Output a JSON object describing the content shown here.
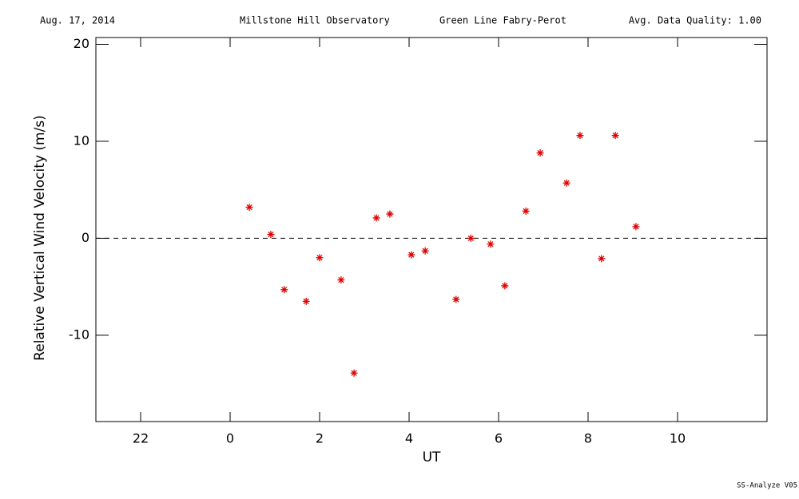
{
  "chart_data": {
    "type": "scatter",
    "header": [
      "Aug. 17, 2014",
      "Millstone Hill Observatory",
      "Green Line Fabry-Perot",
      "Avg. Data Quality: 1.00"
    ],
    "footer": "SS-Analyze V05",
    "x_label": "UT",
    "y_label": "Relative Vertical Wind Velocity (m/s)",
    "xlim": [
      -3,
      12
    ],
    "xticks": [
      {
        "value": -2,
        "label": "22"
      },
      0,
      2,
      4,
      6,
      8,
      10
    ],
    "ylim": [
      -18.9,
      20.7
    ],
    "yticks": [
      -10,
      0,
      10,
      20
    ],
    "reference_line": 0,
    "color": "#e00000",
    "x": [
      0.43,
      0.91,
      1.21,
      1.7,
      2.0,
      2.48,
      2.77,
      3.27,
      3.57,
      4.05,
      4.36,
      5.05,
      5.38,
      5.82,
      6.14,
      6.61,
      6.93,
      7.52,
      7.82,
      8.3,
      8.61,
      9.07
    ],
    "values": [
      3.2,
      0.4,
      -5.3,
      -6.5,
      -2.0,
      -4.3,
      -13.9,
      2.1,
      2.5,
      -1.7,
      -1.3,
      -6.3,
      0.0,
      -0.6,
      -4.9,
      2.8,
      8.8,
      5.7,
      10.6,
      -2.1,
      10.6,
      1.2
    ]
  }
}
